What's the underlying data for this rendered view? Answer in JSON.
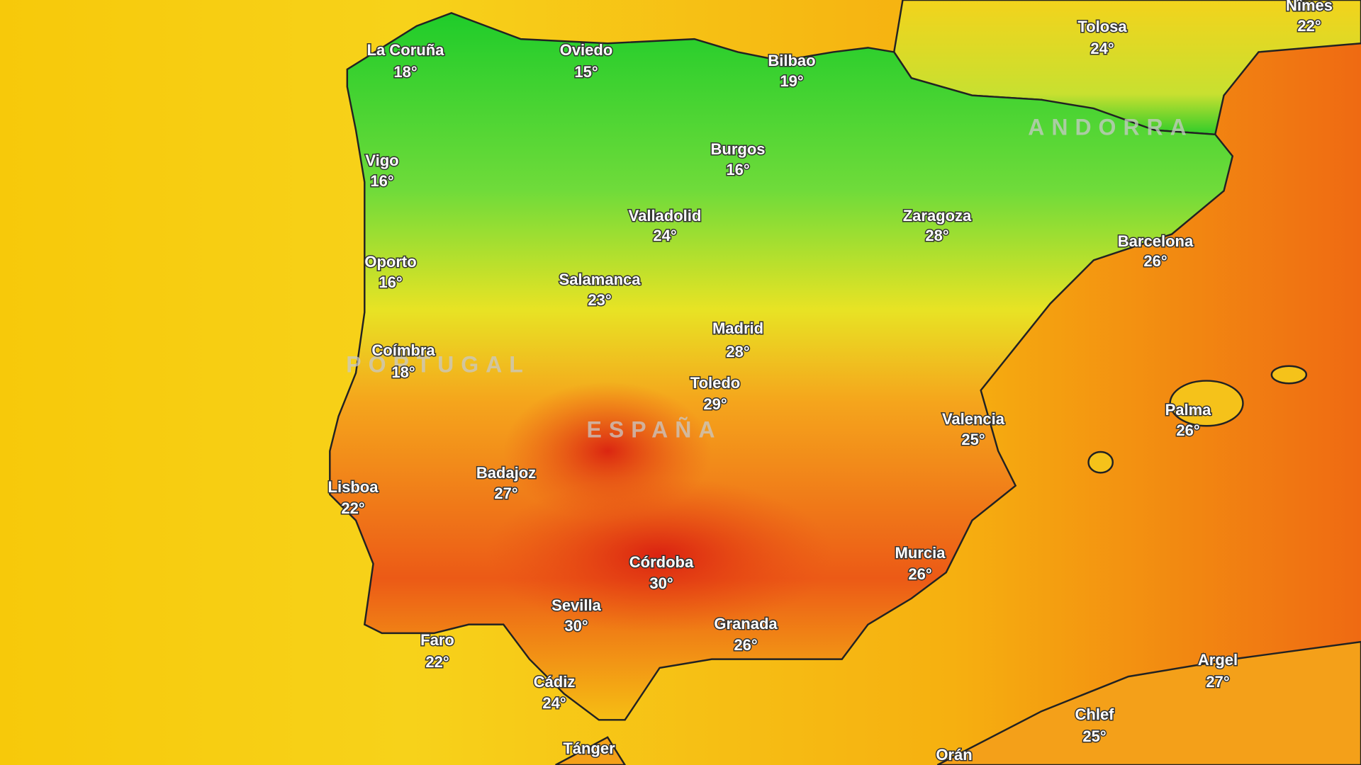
{
  "cities": [
    {
      "name": "La Coruña",
      "temp": "18°"
    },
    {
      "name": "Oviedo",
      "temp": "15°"
    },
    {
      "name": "Bilbao",
      "temp": "19°"
    },
    {
      "name": "Tolosa",
      "temp": "24°"
    },
    {
      "name": "Nîmes",
      "temp": "22°"
    },
    {
      "name": "Burgos",
      "temp": "16°"
    },
    {
      "name": "Vigo",
      "temp": "16°"
    },
    {
      "name": "Valladolid",
      "temp": "24°"
    },
    {
      "name": "Zaragoza",
      "temp": "28°"
    },
    {
      "name": "Barcelona",
      "temp": "26°"
    },
    {
      "name": "Oporto",
      "temp": "16°"
    },
    {
      "name": "Salamanca",
      "temp": "23°"
    },
    {
      "name": "Madrid",
      "temp": "28°"
    },
    {
      "name": "Coímbra",
      "temp": "18°"
    },
    {
      "name": "Toledo",
      "temp": "29°"
    },
    {
      "name": "Valencia",
      "temp": "25°"
    },
    {
      "name": "Palma",
      "temp": "26°"
    },
    {
      "name": "Badajoz",
      "temp": "27°"
    },
    {
      "name": "Lisboa",
      "temp": "22°"
    },
    {
      "name": "Murcia",
      "temp": "26°"
    },
    {
      "name": "Córdoba",
      "temp": "30°"
    },
    {
      "name": "Sevilla",
      "temp": "30°"
    },
    {
      "name": "Granada",
      "temp": "26°"
    },
    {
      "name": "Faro",
      "temp": "22°"
    },
    {
      "name": "Cádiz",
      "temp": "24°"
    },
    {
      "name": "Argel",
      "temp": "27°"
    },
    {
      "name": "Chlef",
      "temp": "25°"
    },
    {
      "name": "Tánger"
    },
    {
      "name": "Orán"
    }
  ],
  "regions": [
    "PORTUGAL",
    "ESPAÑA",
    "ANDORRA"
  ]
}
